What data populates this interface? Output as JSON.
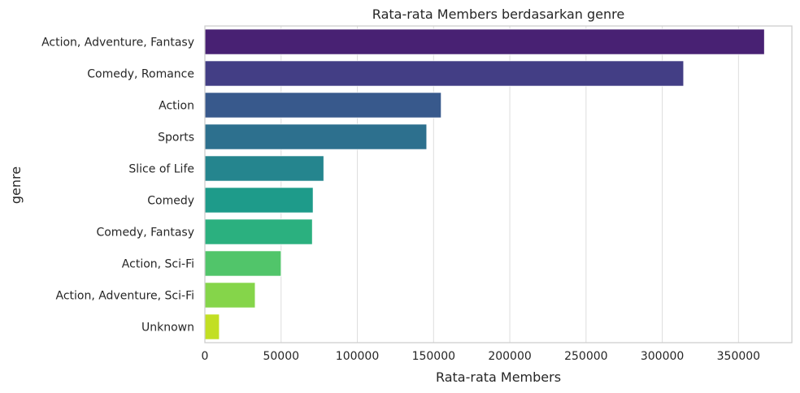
{
  "chart_data": {
    "type": "bar",
    "orientation": "horizontal",
    "title": "Rata-rata Members berdasarkan genre",
    "xlabel": "Rata-rata Members",
    "ylabel": "genre",
    "categories": [
      "Action, Adventure, Fantasy",
      "Comedy, Romance",
      "Action",
      "Sports",
      "Slice of Life",
      "Comedy",
      "Comedy, Fantasy",
      "Action, Sci-Fi",
      "Action, Adventure, Sci-Fi",
      "Unknown"
    ],
    "values": [
      367000,
      314000,
      155000,
      145500,
      78000,
      71000,
      70500,
      50000,
      33000,
      9500
    ],
    "xlim": [
      0,
      385000
    ],
    "xticks": [
      0,
      50000,
      100000,
      150000,
      200000,
      250000,
      300000,
      350000
    ],
    "grid": "vertical",
    "colors": [
      "#482173",
      "#433E85",
      "#38598C",
      "#2D708E",
      "#25858E",
      "#1E9B8A",
      "#2BB07F",
      "#51C56A",
      "#85D54A",
      "#C2DF23"
    ]
  }
}
